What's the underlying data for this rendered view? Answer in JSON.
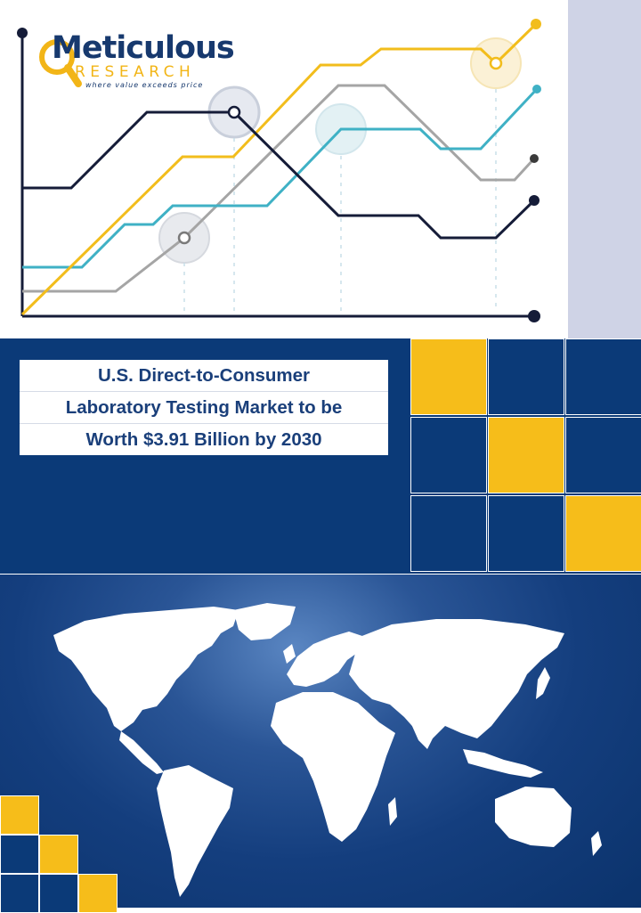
{
  "brand": {
    "name": "Meticulous",
    "sub": "RESEARCH",
    "tagline": "where value exceeds price"
  },
  "title": {
    "lines": [
      "U.S. Direct-to-Consumer",
      "Laboratory Testing Market to be",
      "Worth $3.91 Billion by 2030"
    ]
  },
  "colors": {
    "navy": "#0b3a78",
    "yellow": "#f6bd1a",
    "teal": "#3fb1c5",
    "gray": "#a5a5a5",
    "dark": "#1b2340",
    "panel": "#cfd3e6"
  },
  "icons": {
    "lens": "magnifier-icon",
    "map": "world-map-icon"
  }
}
